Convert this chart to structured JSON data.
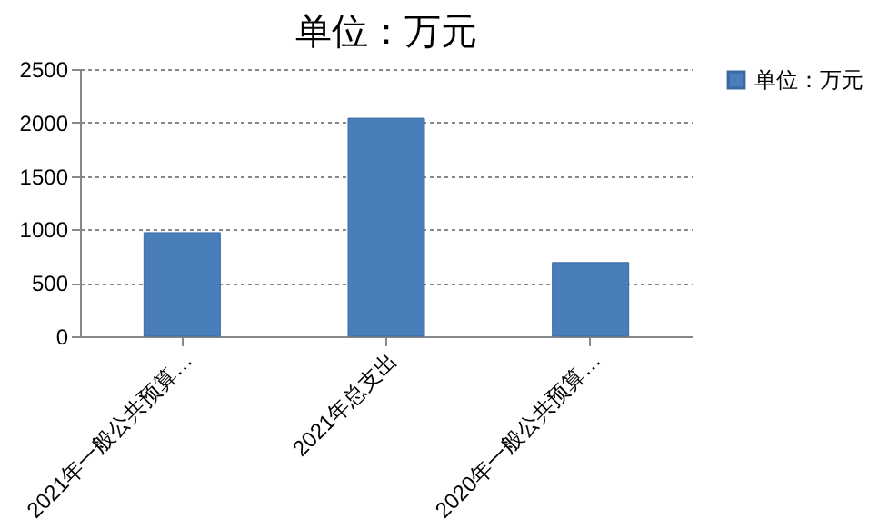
{
  "chart_data": {
    "type": "bar",
    "title": "单位：万元",
    "categories": [
      "2021年一般公共预算…",
      "2021年总支出",
      "2020年一般公共预算…"
    ],
    "series": [
      {
        "name": "单位：万元",
        "color": "#4a7ebb",
        "values": [
          970,
          2040,
          690
        ]
      }
    ],
    "ylim": [
      0,
      2500
    ],
    "yticks": [
      0,
      500,
      1000,
      1500,
      2000,
      2500
    ],
    "grid": "y",
    "legend": "right"
  }
}
